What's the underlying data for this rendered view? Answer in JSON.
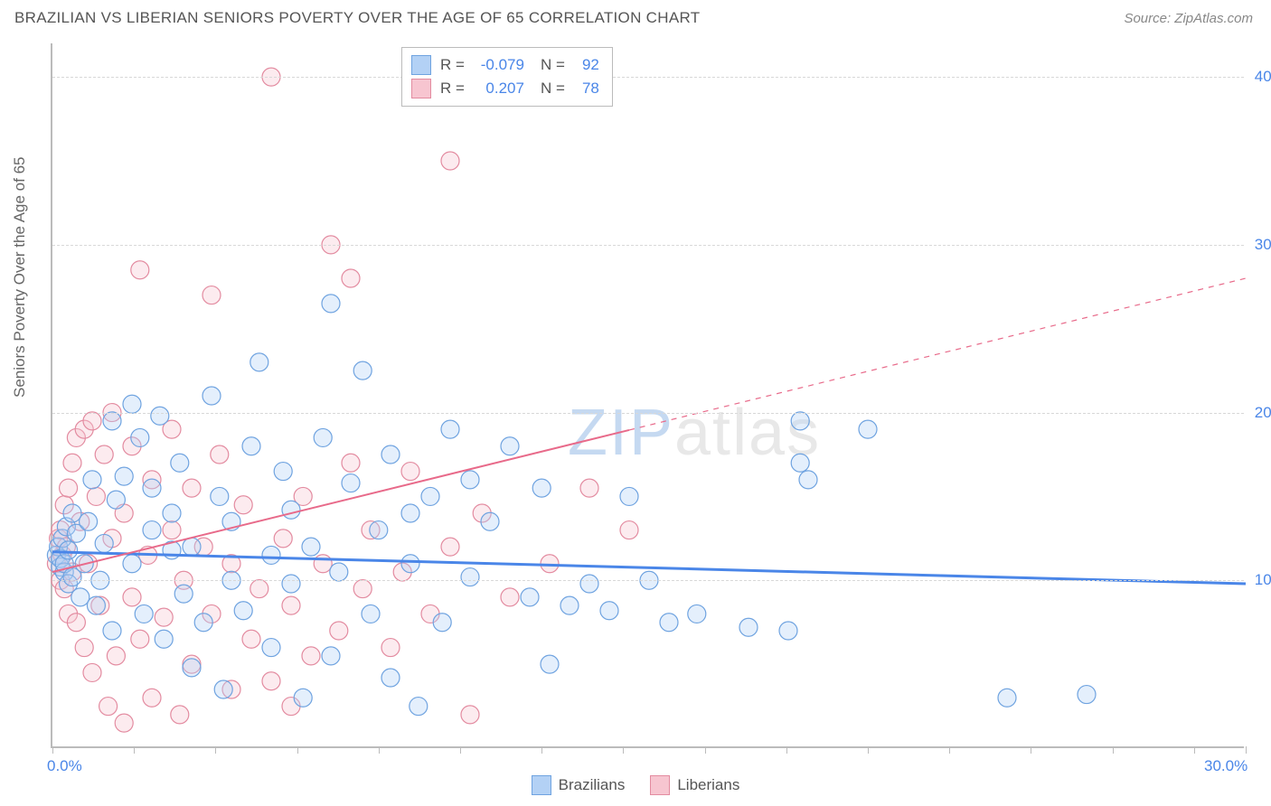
{
  "header": {
    "title": "BRAZILIAN VS LIBERIAN SENIORS POVERTY OVER THE AGE OF 65 CORRELATION CHART",
    "source": "Source: ZipAtlas.com"
  },
  "watermark": {
    "part1": "ZIP",
    "part2": "atlas"
  },
  "y_axis_title": "Seniors Poverty Over the Age of 65",
  "chart": {
    "type": "scatter-with-regression",
    "xlim": [
      0,
      30
    ],
    "ylim": [
      0,
      42
    ],
    "x_tick_positions": [
      0,
      2.05,
      4.1,
      6.15,
      8.2,
      10.25,
      12.3,
      14.35,
      16.4,
      18.45,
      20.5,
      22.55,
      24.6,
      26.65,
      28.7,
      30
    ],
    "x_tick_labels": {
      "0": "0.0%",
      "30": "30.0%"
    },
    "y_gridlines": [
      10,
      20,
      30,
      40
    ],
    "y_tick_labels": {
      "10": "10.0%",
      "20": "20.0%",
      "30": "30.0%",
      "40": "40.0%"
    },
    "background_color": "#ffffff",
    "grid_color": "#d8d8d8",
    "axis_color": "#bbbbbb",
    "tick_label_color": "#4a86e8",
    "marker_radius": 10,
    "marker_stroke_width": 1.2,
    "marker_fill_opacity": 0.35,
    "series": {
      "brazilians": {
        "label": "Brazilians",
        "color": "#4a86e8",
        "fill": "#b3d1f5",
        "stroke": "#6fa3e0",
        "regression": {
          "x1": 0,
          "y1": 11.7,
          "x2": 30,
          "y2": 9.8,
          "solid_until_x": 30,
          "width": 3
        },
        "points": [
          [
            0.1,
            11.5
          ],
          [
            0.15,
            12.0
          ],
          [
            0.2,
            10.8
          ],
          [
            0.2,
            11.3
          ],
          [
            0.25,
            12.5
          ],
          [
            0.3,
            10.5
          ],
          [
            0.3,
            11.0
          ],
          [
            0.35,
            13.2
          ],
          [
            0.4,
            9.8
          ],
          [
            0.4,
            11.8
          ],
          [
            0.5,
            14.0
          ],
          [
            0.5,
            10.2
          ],
          [
            0.6,
            12.8
          ],
          [
            0.7,
            9.0
          ],
          [
            0.8,
            11.0
          ],
          [
            0.9,
            13.5
          ],
          [
            1.0,
            16.0
          ],
          [
            1.1,
            8.5
          ],
          [
            1.2,
            10.0
          ],
          [
            1.3,
            12.2
          ],
          [
            1.5,
            19.5
          ],
          [
            1.5,
            7.0
          ],
          [
            1.6,
            14.8
          ],
          [
            1.8,
            16.2
          ],
          [
            2.0,
            11.0
          ],
          [
            2.0,
            20.5
          ],
          [
            2.2,
            18.5
          ],
          [
            2.3,
            8.0
          ],
          [
            2.5,
            13.0
          ],
          [
            2.5,
            15.5
          ],
          [
            2.7,
            19.8
          ],
          [
            2.8,
            6.5
          ],
          [
            3.0,
            11.8
          ],
          [
            3.0,
            14.0
          ],
          [
            3.2,
            17.0
          ],
          [
            3.3,
            9.2
          ],
          [
            3.5,
            4.8
          ],
          [
            3.5,
            12.0
          ],
          [
            3.8,
            7.5
          ],
          [
            4.0,
            21.0
          ],
          [
            4.2,
            15.0
          ],
          [
            4.3,
            3.5
          ],
          [
            4.5,
            10.0
          ],
          [
            4.5,
            13.5
          ],
          [
            4.8,
            8.2
          ],
          [
            5.0,
            18.0
          ],
          [
            5.2,
            23.0
          ],
          [
            5.5,
            6.0
          ],
          [
            5.5,
            11.5
          ],
          [
            5.8,
            16.5
          ],
          [
            6.0,
            9.8
          ],
          [
            6.0,
            14.2
          ],
          [
            6.3,
            3.0
          ],
          [
            6.5,
            12.0
          ],
          [
            6.8,
            18.5
          ],
          [
            7.0,
            5.5
          ],
          [
            7.0,
            26.5
          ],
          [
            7.2,
            10.5
          ],
          [
            7.5,
            15.8
          ],
          [
            7.8,
            22.5
          ],
          [
            8.0,
            8.0
          ],
          [
            8.2,
            13.0
          ],
          [
            8.5,
            4.2
          ],
          [
            8.5,
            17.5
          ],
          [
            9.0,
            11.0
          ],
          [
            9.2,
            2.5
          ],
          [
            9.5,
            15.0
          ],
          [
            9.8,
            7.5
          ],
          [
            10.0,
            19.0
          ],
          [
            10.5,
            10.2
          ],
          [
            10.5,
            16.0
          ],
          [
            11.0,
            13.5
          ],
          [
            11.5,
            18.0
          ],
          [
            12.0,
            9.0
          ],
          [
            12.3,
            15.5
          ],
          [
            12.5,
            5.0
          ],
          [
            13.0,
            8.5
          ],
          [
            13.5,
            9.8
          ],
          [
            14.0,
            8.2
          ],
          [
            14.5,
            15.0
          ],
          [
            15.0,
            10.0
          ],
          [
            15.5,
            7.5
          ],
          [
            16.2,
            8.0
          ],
          [
            17.5,
            7.2
          ],
          [
            18.5,
            7.0
          ],
          [
            18.8,
            17.0
          ],
          [
            18.8,
            19.5
          ],
          [
            19.0,
            16.0
          ],
          [
            20.5,
            19.0
          ],
          [
            24.0,
            3.0
          ],
          [
            26.0,
            3.2
          ],
          [
            9.0,
            14.0
          ]
        ]
      },
      "liberians": {
        "label": "Liberians",
        "color": "#e86a8a",
        "fill": "#f7c5d0",
        "stroke": "#e38ba0",
        "regression": {
          "x1": 0,
          "y1": 10.5,
          "x2": 30,
          "y2": 28.0,
          "solid_until_x": 14.5,
          "width": 2
        },
        "points": [
          [
            0.1,
            11.0
          ],
          [
            0.15,
            12.5
          ],
          [
            0.2,
            10.0
          ],
          [
            0.2,
            13.0
          ],
          [
            0.25,
            11.5
          ],
          [
            0.3,
            14.5
          ],
          [
            0.3,
            9.5
          ],
          [
            0.35,
            12.0
          ],
          [
            0.4,
            15.5
          ],
          [
            0.4,
            8.0
          ],
          [
            0.5,
            17.0
          ],
          [
            0.5,
            10.5
          ],
          [
            0.6,
            18.5
          ],
          [
            0.6,
            7.5
          ],
          [
            0.7,
            13.5
          ],
          [
            0.8,
            19.0
          ],
          [
            0.8,
            6.0
          ],
          [
            0.9,
            11.0
          ],
          [
            1.0,
            19.5
          ],
          [
            1.0,
            4.5
          ],
          [
            1.1,
            15.0
          ],
          [
            1.2,
            8.5
          ],
          [
            1.3,
            17.5
          ],
          [
            1.4,
            2.5
          ],
          [
            1.5,
            12.5
          ],
          [
            1.5,
            20.0
          ],
          [
            1.6,
            5.5
          ],
          [
            1.8,
            14.0
          ],
          [
            1.8,
            1.5
          ],
          [
            2.0,
            9.0
          ],
          [
            2.0,
            18.0
          ],
          [
            2.2,
            6.5
          ],
          [
            2.2,
            28.5
          ],
          [
            2.4,
            11.5
          ],
          [
            2.5,
            3.0
          ],
          [
            2.5,
            16.0
          ],
          [
            2.8,
            7.8
          ],
          [
            3.0,
            13.0
          ],
          [
            3.0,
            19.0
          ],
          [
            3.2,
            2.0
          ],
          [
            3.3,
            10.0
          ],
          [
            3.5,
            15.5
          ],
          [
            3.5,
            5.0
          ],
          [
            3.8,
            12.0
          ],
          [
            4.0,
            8.0
          ],
          [
            4.0,
            27.0
          ],
          [
            4.2,
            17.5
          ],
          [
            4.5,
            3.5
          ],
          [
            4.5,
            11.0
          ],
          [
            4.8,
            14.5
          ],
          [
            5.0,
            6.5
          ],
          [
            5.2,
            9.5
          ],
          [
            5.5,
            4.0
          ],
          [
            5.5,
            40.0
          ],
          [
            5.8,
            12.5
          ],
          [
            6.0,
            2.5
          ],
          [
            6.0,
            8.5
          ],
          [
            6.3,
            15.0
          ],
          [
            6.5,
            5.5
          ],
          [
            6.8,
            11.0
          ],
          [
            7.0,
            30.0
          ],
          [
            7.2,
            7.0
          ],
          [
            7.5,
            17.0
          ],
          [
            7.5,
            28.0
          ],
          [
            7.8,
            9.5
          ],
          [
            8.0,
            13.0
          ],
          [
            8.5,
            6.0
          ],
          [
            8.8,
            10.5
          ],
          [
            9.0,
            16.5
          ],
          [
            9.5,
            8.0
          ],
          [
            10.0,
            12.0
          ],
          [
            10.0,
            35.0
          ],
          [
            10.5,
            2.0
          ],
          [
            10.8,
            14.0
          ],
          [
            11.5,
            9.0
          ],
          [
            12.5,
            11.0
          ],
          [
            13.5,
            15.5
          ],
          [
            14.5,
            13.0
          ]
        ]
      }
    }
  },
  "stats_legend": {
    "rows": [
      {
        "swatch_fill": "#b3d1f5",
        "swatch_stroke": "#6fa3e0",
        "R_label": "R =",
        "R_value": "-0.079",
        "N_label": "N =",
        "N_value": "92"
      },
      {
        "swatch_fill": "#f7c5d0",
        "swatch_stroke": "#e38ba0",
        "R_label": "R =",
        "R_value": "0.207",
        "N_label": "N =",
        "N_value": "78"
      }
    ]
  },
  "bottom_legend": {
    "items": [
      {
        "fill": "#b3d1f5",
        "stroke": "#6fa3e0",
        "label": "Brazilians"
      },
      {
        "fill": "#f7c5d0",
        "stroke": "#e38ba0",
        "label": "Liberians"
      }
    ]
  }
}
